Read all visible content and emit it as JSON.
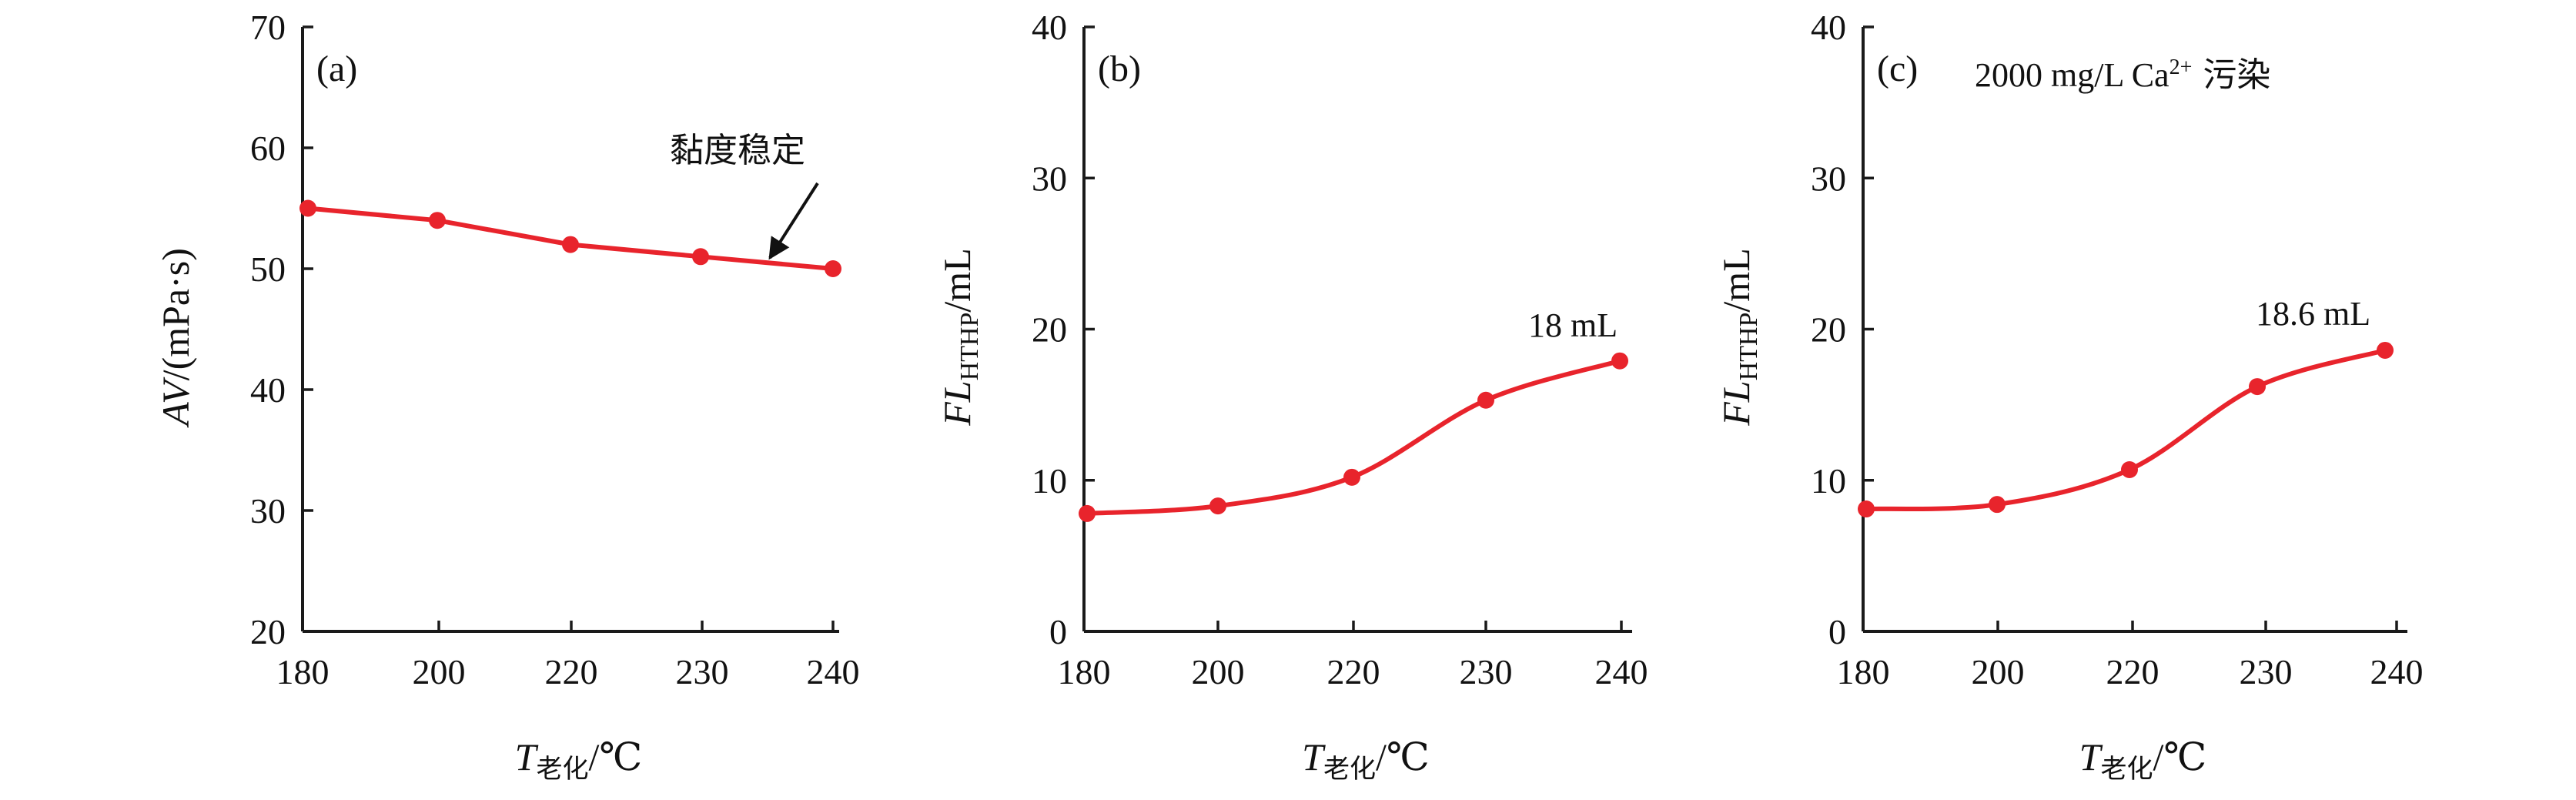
{
  "chart_data": [
    {
      "type": "line",
      "panel": "(a)",
      "title": "",
      "ylabel": {
        "main": "AV",
        "rest": "/(mPa·s)"
      },
      "xlabel": {
        "main": "T",
        "sub": "老化",
        "rest": "/℃"
      },
      "x": [
        180,
        200,
        220,
        230,
        240
      ],
      "x_ticks": [
        "180",
        "200",
        "220",
        "230",
        "240"
      ],
      "y_ticks": [
        20,
        30,
        40,
        50,
        60,
        70
      ],
      "ylim": [
        20,
        70
      ],
      "smooth": false,
      "series": [
        {
          "values": [
            55,
            54,
            52,
            51,
            50
          ],
          "color": "#e8242c"
        }
      ],
      "annotation": {
        "text": "黏度稳定",
        "arrow": true
      }
    },
    {
      "type": "line",
      "panel": "(b)",
      "title": "",
      "ylabel": {
        "main": "FL",
        "sub": "HTHP",
        "rest": "/mL"
      },
      "xlabel": {
        "main": "T",
        "sub": "老化",
        "rest": "/℃"
      },
      "x": [
        180,
        200,
        220,
        230,
        240
      ],
      "x_ticks": [
        "180",
        "200",
        "220",
        "230",
        "240"
      ],
      "y_ticks": [
        0,
        10,
        20,
        30,
        40
      ],
      "ylim": [
        0,
        40
      ],
      "smooth": true,
      "series": [
        {
          "values": [
            7.8,
            8.3,
            10.2,
            15.3,
            17.9
          ],
          "color": "#e8242c"
        }
      ],
      "annotation": {
        "text": "18 mL",
        "arrow": false
      }
    },
    {
      "type": "line",
      "panel": "(c)",
      "title": "",
      "subtitle": {
        "pre": "2000 mg/L Ca",
        "sup": "2+",
        "post": " 污染"
      },
      "ylabel": {
        "main": "FL",
        "sub": "HTHP",
        "rest": "/mL"
      },
      "xlabel": {
        "main": "T",
        "sub": "老化",
        "rest": "/℃"
      },
      "x": [
        180,
        200,
        220,
        230,
        240
      ],
      "x_ticks": [
        "180",
        "200",
        "220",
        "230",
        "240"
      ],
      "y_ticks": [
        0,
        10,
        20,
        30,
        40
      ],
      "ylim": [
        0,
        40
      ],
      "smooth": true,
      "series": [
        {
          "values": [
            8.1,
            8.4,
            10.7,
            16.2,
            18.6
          ],
          "color": "#e8242c"
        }
      ],
      "annotation": {
        "text": "18.6 mL",
        "arrow": false
      }
    }
  ]
}
